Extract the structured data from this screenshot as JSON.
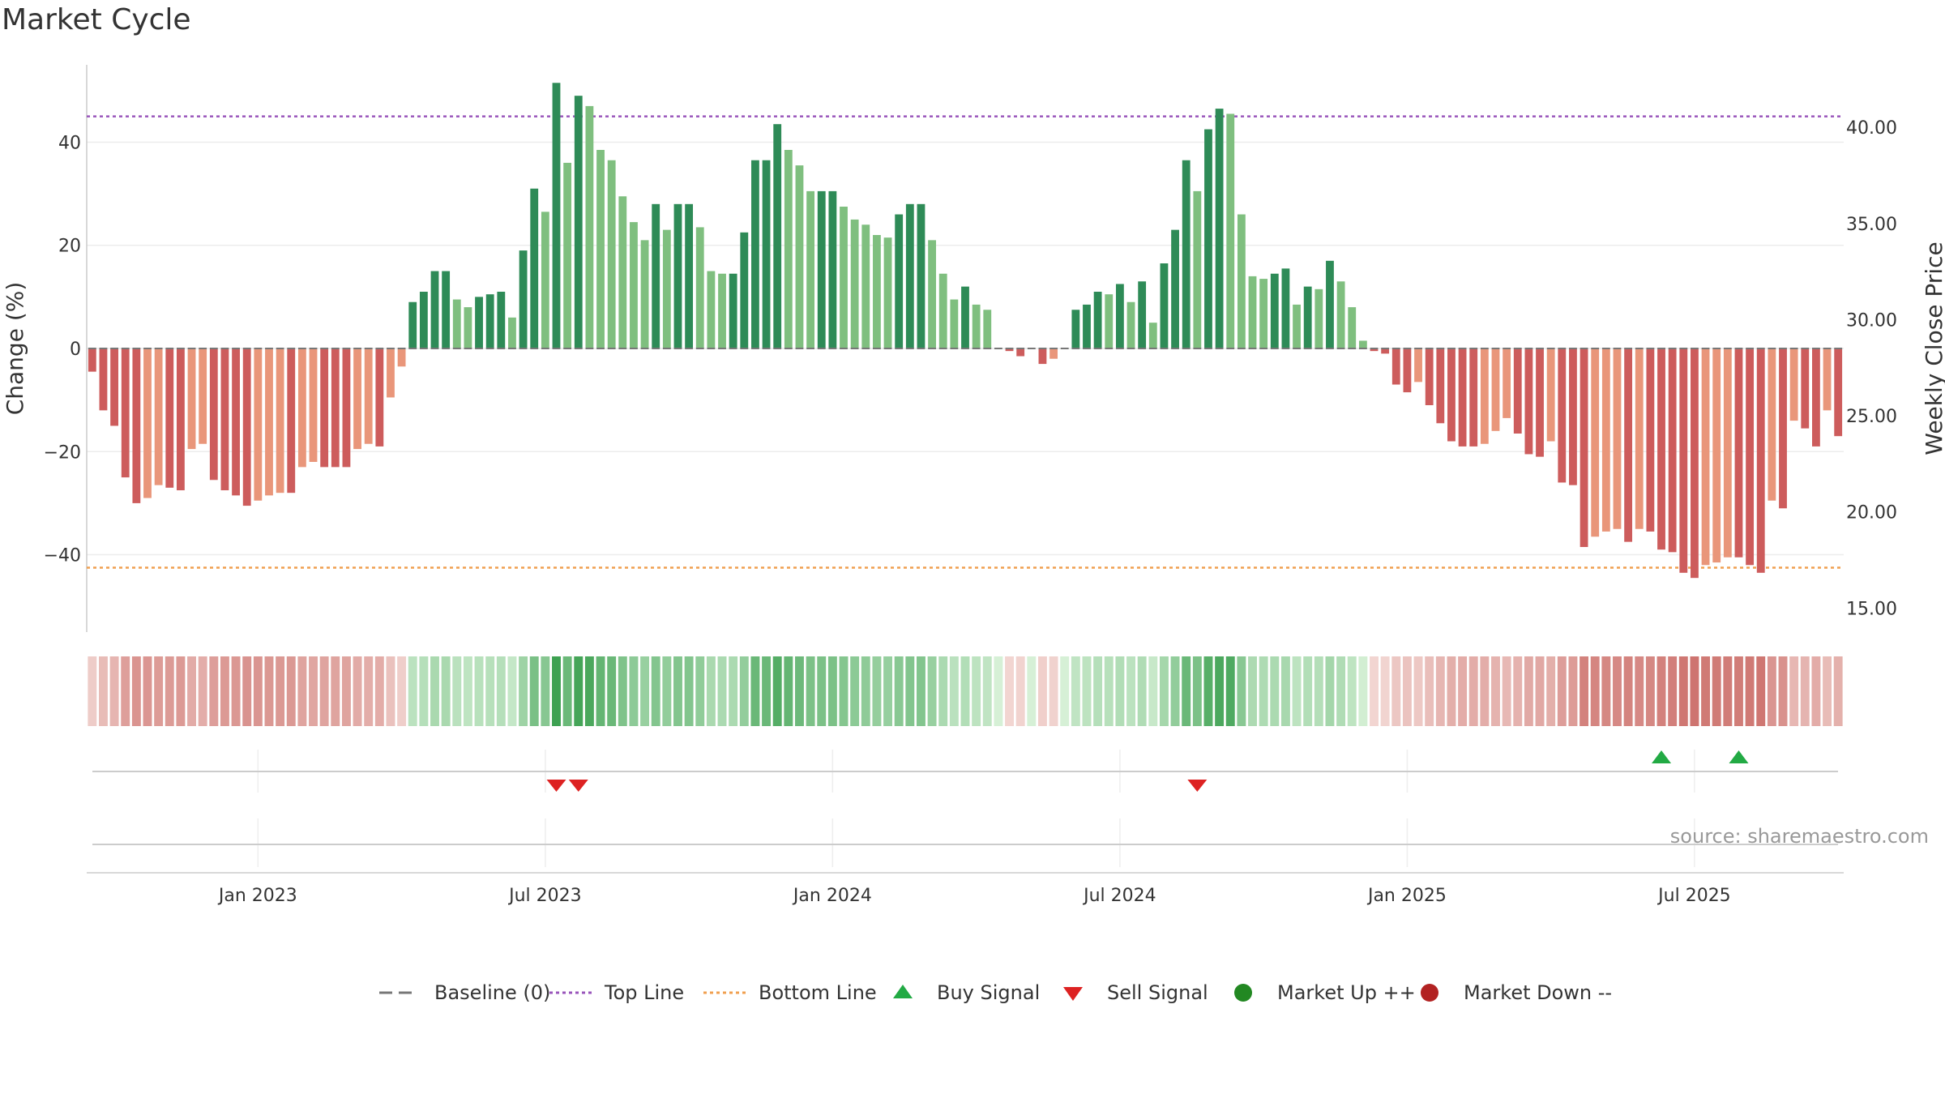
{
  "chart_data": {
    "type": "bar",
    "title": "Market Cycle",
    "ylabel": "Change (%)",
    "y2label": "Weekly Close Price",
    "ylim": [
      -55,
      55
    ],
    "y2lim": [
      13.75,
      43.25
    ],
    "yticks": [
      {
        "value": 40,
        "label": "40"
      },
      {
        "value": 20,
        "label": "20"
      },
      {
        "value": 0,
        "label": "0"
      },
      {
        "value": -20,
        "label": "−20"
      },
      {
        "value": -40,
        "label": "−40"
      }
    ],
    "y2ticks": [
      {
        "value": 40,
        "label": "40.00"
      },
      {
        "value": 35,
        "label": "35.00"
      },
      {
        "value": 30,
        "label": "30.00"
      },
      {
        "value": 25,
        "label": "25.00"
      },
      {
        "value": 20,
        "label": "20.00"
      },
      {
        "value": 15,
        "label": "15.00"
      }
    ],
    "xticks": [
      {
        "index": 15,
        "label": "Jan 2023"
      },
      {
        "index": 41,
        "label": "Jul 2023"
      },
      {
        "index": 67,
        "label": "Jan 2024"
      },
      {
        "index": 93,
        "label": "Jul 2024"
      },
      {
        "index": 119,
        "label": "Jan 2025"
      },
      {
        "index": 145,
        "label": "Jul 2025"
      }
    ],
    "top_line": 45,
    "bottom_line": -42.5,
    "values": [
      -4.5,
      -12,
      -15,
      -25,
      -30,
      -29,
      -26.5,
      -27,
      -27.5,
      -19.5,
      -18.5,
      -25.5,
      -27.5,
      -28.5,
      -30.5,
      -29.5,
      -28.5,
      -28,
      -28,
      -23,
      -22,
      -23,
      -23,
      -23,
      -19.5,
      -18.5,
      -19,
      -9.5,
      -3.5,
      9,
      11,
      15,
      15,
      9.5,
      8,
      10,
      10.5,
      11,
      6,
      19,
      31,
      26.5,
      51.5,
      36,
      49,
      47,
      38.5,
      36.5,
      29.5,
      24.5,
      21,
      28,
      23,
      28,
      28,
      23.5,
      15,
      14.5,
      14.5,
      22.5,
      36.5,
      36.5,
      43.5,
      38.5,
      35.5,
      30.5,
      30.5,
      30.5,
      27.5,
      25,
      24,
      22,
      21.5,
      26,
      28,
      28,
      21,
      14.5,
      9.5,
      12,
      8.5,
      7.5,
      0,
      -0.5,
      -1.5,
      0,
      -3,
      -2,
      0,
      7.5,
      8.5,
      11,
      10.5,
      12.5,
      9,
      13,
      5,
      16.5,
      23,
      36.5,
      30.5,
      42.5,
      46.5,
      45.5,
      26,
      14,
      13.5,
      14.5,
      15.5,
      8.5,
      12,
      11.5,
      17,
      13,
      8,
      1.5,
      -0.5,
      -1,
      -7,
      -8.5,
      -6.5,
      -11,
      -14.5,
      -18,
      -19,
      -19,
      -18.5,
      -16,
      -13.5,
      -16.5,
      -20.5,
      -21,
      -18,
      -26,
      -26.5,
      -38.5,
      -36.5,
      -35.5,
      -35,
      -37.5,
      -35,
      -35.5,
      -39,
      -39.5,
      -43.5,
      -44.5,
      -42,
      -41.5,
      -40.5,
      -40.5,
      -42,
      -43.5,
      -29.5,
      -31,
      -14,
      -15.5,
      -19,
      -12,
      -17
    ],
    "signals": [
      {
        "type": "sell",
        "index": 42
      },
      {
        "type": "sell",
        "index": 44
      },
      {
        "type": "sell",
        "index": 100
      },
      {
        "type": "buy",
        "index": 142
      },
      {
        "type": "buy",
        "index": 149
      }
    ],
    "legend": [
      {
        "key": "baseline",
        "label": "Baseline (0)"
      },
      {
        "key": "top",
        "label": "Top Line"
      },
      {
        "key": "bottom",
        "label": "Bottom Line"
      },
      {
        "key": "buy",
        "label": "Buy Signal"
      },
      {
        "key": "sell",
        "label": "Sell Signal"
      },
      {
        "key": "up",
        "label": "Market Up ++"
      },
      {
        "key": "down",
        "label": "Market Down --"
      }
    ],
    "source": "source: sharemaestro.com"
  },
  "colors": {
    "green_dark": "#2e8b57",
    "green_light": "#7fbf7f",
    "red_dark": "#cd5c5c",
    "salmon": "#e9967a",
    "top_line": "#9955bb",
    "bottom_line": "#f0a050",
    "buy": "#22aa44",
    "sell": "#dd2222",
    "market_up": "#228822",
    "market_down": "#b22222"
  }
}
